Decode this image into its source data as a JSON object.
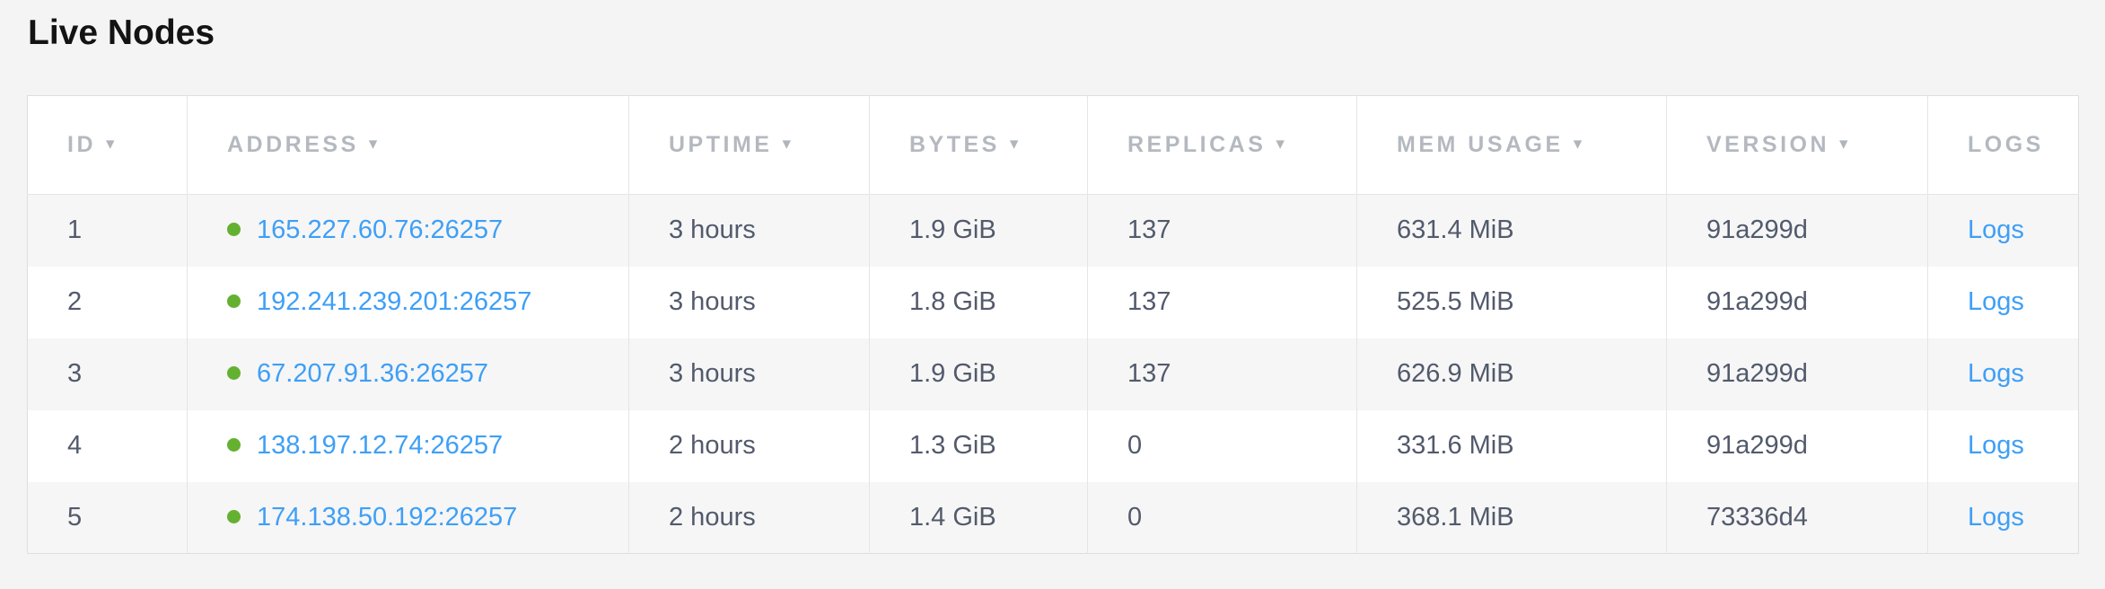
{
  "page": {
    "title": "Live Nodes"
  },
  "table": {
    "sort_icon": "▾",
    "columns": [
      {
        "key": "id",
        "label": "ID",
        "sortable": true
      },
      {
        "key": "address",
        "label": "ADDRESS",
        "sortable": true
      },
      {
        "key": "uptime",
        "label": "UPTIME",
        "sortable": true
      },
      {
        "key": "bytes",
        "label": "BYTES",
        "sortable": true
      },
      {
        "key": "replicas",
        "label": "REPLICAS",
        "sortable": true
      },
      {
        "key": "mem_usage",
        "label": "MEM USAGE",
        "sortable": true
      },
      {
        "key": "version",
        "label": "VERSION",
        "sortable": true
      },
      {
        "key": "logs",
        "label": "LOGS",
        "sortable": false
      }
    ],
    "rows": [
      {
        "id": "1",
        "address": "165.227.60.76:26257",
        "status": "live",
        "uptime": "3 hours",
        "bytes": "1.9 GiB",
        "replicas": "137",
        "mem_usage": "631.4 MiB",
        "version": "91a299d",
        "logs_label": "Logs"
      },
      {
        "id": "2",
        "address": "192.241.239.201:26257",
        "status": "live",
        "uptime": "3 hours",
        "bytes": "1.8 GiB",
        "replicas": "137",
        "mem_usage": "525.5 MiB",
        "version": "91a299d",
        "logs_label": "Logs"
      },
      {
        "id": "3",
        "address": "67.207.91.36:26257",
        "status": "live",
        "uptime": "3 hours",
        "bytes": "1.9 GiB",
        "replicas": "137",
        "mem_usage": "626.9 MiB",
        "version": "91a299d",
        "logs_label": "Logs"
      },
      {
        "id": "4",
        "address": "138.197.12.74:26257",
        "status": "live",
        "uptime": "2 hours",
        "bytes": "1.3 GiB",
        "replicas": "0",
        "mem_usage": "331.6 MiB",
        "version": "91a299d",
        "logs_label": "Logs"
      },
      {
        "id": "5",
        "address": "174.138.50.192:26257",
        "status": "live",
        "uptime": "2 hours",
        "bytes": "1.4 GiB",
        "replicas": "0",
        "mem_usage": "368.1 MiB",
        "version": "73336d4",
        "logs_label": "Logs"
      }
    ]
  },
  "colors": {
    "link": "#3e9ff6",
    "live_dot": "#64b131",
    "header_text": "#b4b9c0",
    "cell_text": "#525a6c"
  }
}
